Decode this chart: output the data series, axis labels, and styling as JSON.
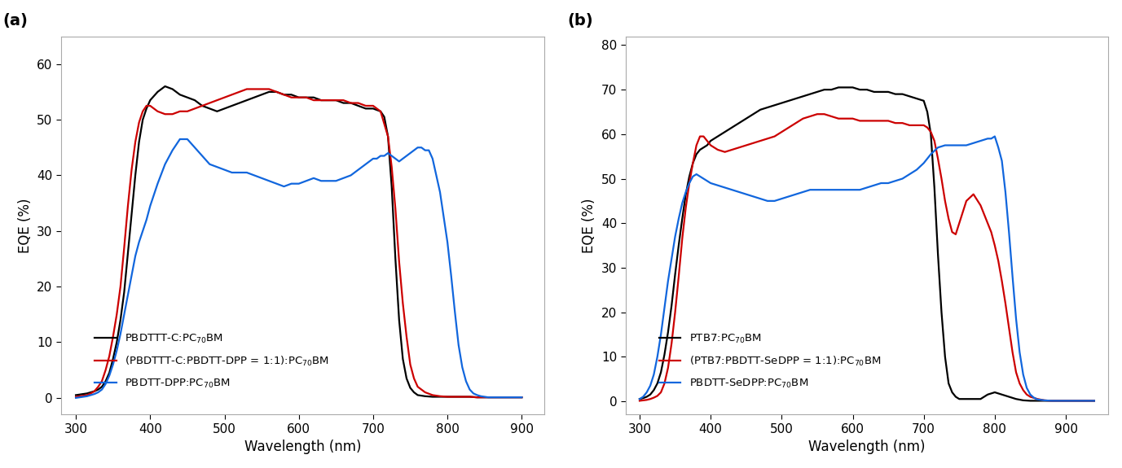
{
  "panel_a": {
    "title": "(a)",
    "xlabel": "Wavelength (nm)",
    "ylabel": "EQE (%)",
    "xlim": [
      280,
      930
    ],
    "ylim": [
      -3,
      65
    ],
    "yticks": [
      0,
      10,
      20,
      30,
      40,
      50,
      60
    ],
    "xticks": [
      300,
      400,
      500,
      600,
      700,
      800,
      900
    ],
    "legend": [
      "PBDTTT-C:PC$_{70}$BM",
      "(PBDTTT-C:PBDTT-DPP = 1:1):PC$_{70}$BM",
      "PBDTT-DPP:PC$_{70}$BM"
    ],
    "colors": [
      "black",
      "#cc0000",
      "#1166dd"
    ],
    "black_x": [
      300,
      310,
      315,
      320,
      325,
      330,
      335,
      340,
      345,
      350,
      355,
      360,
      365,
      370,
      375,
      380,
      385,
      390,
      395,
      400,
      410,
      420,
      430,
      440,
      450,
      460,
      470,
      480,
      490,
      500,
      510,
      520,
      530,
      540,
      550,
      560,
      570,
      580,
      590,
      600,
      610,
      620,
      630,
      640,
      650,
      660,
      670,
      680,
      690,
      700,
      710,
      715,
      720,
      725,
      730,
      735,
      740,
      745,
      750,
      755,
      760,
      770,
      780,
      790,
      800,
      810,
      820,
      830,
      840,
      850,
      860,
      870,
      880,
      890,
      900
    ],
    "black_y": [
      0.5,
      0.7,
      0.8,
      1.0,
      1.2,
      1.5,
      2.0,
      3.0,
      4.5,
      7.0,
      10.0,
      14.0,
      19.0,
      26.0,
      33.0,
      40.0,
      46.0,
      50.0,
      52.0,
      53.5,
      55.0,
      56.0,
      55.5,
      54.5,
      54.0,
      53.5,
      52.5,
      52.0,
      51.5,
      52.0,
      52.5,
      53.0,
      53.5,
      54.0,
      54.5,
      55.0,
      55.0,
      54.5,
      54.5,
      54.0,
      54.0,
      54.0,
      53.5,
      53.5,
      53.5,
      53.0,
      53.0,
      52.5,
      52.0,
      52.0,
      51.5,
      50.5,
      47.0,
      38.0,
      25.0,
      14.0,
      7.0,
      3.5,
      1.8,
      1.0,
      0.5,
      0.3,
      0.2,
      0.2,
      0.2,
      0.2,
      0.2,
      0.2,
      0.1,
      0.1,
      0.1,
      0.1,
      0.1,
      0.1,
      0.1
    ],
    "red_x": [
      300,
      310,
      315,
      320,
      325,
      330,
      335,
      340,
      345,
      350,
      355,
      360,
      365,
      370,
      375,
      380,
      385,
      390,
      395,
      400,
      410,
      420,
      430,
      440,
      450,
      460,
      470,
      480,
      490,
      500,
      510,
      520,
      530,
      540,
      550,
      560,
      570,
      580,
      590,
      600,
      610,
      620,
      630,
      640,
      650,
      660,
      670,
      680,
      690,
      700,
      710,
      720,
      725,
      730,
      735,
      740,
      745,
      750,
      755,
      760,
      770,
      780,
      790,
      800,
      810,
      820,
      830,
      840,
      850,
      860,
      870,
      880,
      890,
      900
    ],
    "red_y": [
      0.2,
      0.4,
      0.5,
      0.8,
      1.2,
      2.0,
      3.0,
      5.0,
      7.5,
      11.0,
      15.0,
      20.0,
      27.0,
      34.5,
      41.0,
      46.0,
      49.5,
      51.5,
      52.5,
      52.5,
      51.5,
      51.0,
      51.0,
      51.5,
      51.5,
      52.0,
      52.5,
      53.0,
      53.5,
      54.0,
      54.5,
      55.0,
      55.5,
      55.5,
      55.5,
      55.5,
      55.0,
      54.5,
      54.0,
      54.0,
      54.0,
      53.5,
      53.5,
      53.5,
      53.5,
      53.5,
      53.0,
      53.0,
      52.5,
      52.5,
      51.5,
      47.0,
      41.5,
      34.0,
      24.5,
      17.0,
      11.0,
      6.0,
      3.5,
      2.0,
      1.0,
      0.5,
      0.3,
      0.2,
      0.2,
      0.2,
      0.2,
      0.1,
      0.1,
      0.1,
      0.1,
      0.1,
      0.1,
      0.1
    ],
    "blue_x": [
      300,
      305,
      310,
      315,
      320,
      325,
      330,
      335,
      340,
      345,
      350,
      355,
      360,
      365,
      370,
      375,
      380,
      385,
      390,
      395,
      400,
      410,
      420,
      430,
      440,
      450,
      460,
      470,
      480,
      490,
      500,
      510,
      520,
      530,
      540,
      550,
      560,
      570,
      580,
      590,
      600,
      610,
      620,
      630,
      640,
      650,
      660,
      670,
      680,
      690,
      700,
      705,
      710,
      715,
      720,
      725,
      730,
      735,
      740,
      745,
      750,
      755,
      760,
      765,
      770,
      775,
      780,
      790,
      800,
      805,
      810,
      815,
      820,
      825,
      830,
      835,
      840,
      845,
      850,
      855,
      860,
      870,
      880,
      890,
      900
    ],
    "blue_y": [
      0.0,
      0.1,
      0.2,
      0.3,
      0.5,
      0.7,
      1.0,
      1.5,
      2.5,
      4.0,
      6.0,
      8.5,
      11.5,
      15.0,
      18.5,
      22.0,
      25.5,
      28.0,
      30.0,
      32.0,
      34.5,
      38.5,
      42.0,
      44.5,
      46.5,
      46.5,
      45.0,
      43.5,
      42.0,
      41.5,
      41.0,
      40.5,
      40.5,
      40.5,
      40.0,
      39.5,
      39.0,
      38.5,
      38.0,
      38.5,
      38.5,
      39.0,
      39.5,
      39.0,
      39.0,
      39.0,
      39.5,
      40.0,
      41.0,
      42.0,
      43.0,
      43.0,
      43.5,
      43.5,
      44.0,
      43.5,
      43.0,
      42.5,
      43.0,
      43.5,
      44.0,
      44.5,
      45.0,
      45.0,
      44.5,
      44.5,
      43.0,
      37.0,
      28.0,
      22.0,
      15.5,
      9.5,
      5.5,
      3.0,
      1.5,
      0.8,
      0.5,
      0.3,
      0.2,
      0.1,
      0.1,
      0.1,
      0.1,
      0.1,
      0.1
    ]
  },
  "panel_b": {
    "title": "(b)",
    "xlabel": "Wavelength (nm)",
    "ylabel": "EQE (%)",
    "xlim": [
      280,
      960
    ],
    "ylim": [
      -3,
      82
    ],
    "yticks": [
      0,
      10,
      20,
      30,
      40,
      50,
      60,
      70,
      80
    ],
    "xticks": [
      300,
      400,
      500,
      600,
      700,
      800,
      900
    ],
    "legend": [
      "PTB7:PC$_{70}$BM",
      "(PTB7:PBDTT-SeDPP = 1:1):PC$_{70}$BM",
      "PBDTT-SeDPP:PC$_{70}$BM"
    ],
    "colors": [
      "black",
      "#cc0000",
      "#1166dd"
    ],
    "black_x": [
      300,
      305,
      310,
      315,
      320,
      325,
      330,
      335,
      340,
      345,
      350,
      355,
      360,
      365,
      370,
      375,
      380,
      385,
      390,
      395,
      400,
      410,
      420,
      430,
      440,
      450,
      460,
      470,
      480,
      490,
      500,
      510,
      520,
      530,
      540,
      550,
      560,
      570,
      580,
      590,
      600,
      610,
      620,
      630,
      640,
      650,
      660,
      670,
      680,
      690,
      700,
      705,
      710,
      715,
      720,
      725,
      730,
      735,
      740,
      745,
      750,
      755,
      760,
      770,
      780,
      790,
      800,
      810,
      820,
      830,
      840,
      850,
      860,
      870,
      880,
      890,
      900,
      910,
      920,
      930,
      940
    ],
    "black_y": [
      0.5,
      0.7,
      1.0,
      1.5,
      2.5,
      4.0,
      6.5,
      10.5,
      15.5,
      21.5,
      28.5,
      35.0,
      41.0,
      46.5,
      50.5,
      53.5,
      55.5,
      56.5,
      57.0,
      57.5,
      58.5,
      59.5,
      60.5,
      61.5,
      62.5,
      63.5,
      64.5,
      65.5,
      66.0,
      66.5,
      67.0,
      67.5,
      68.0,
      68.5,
      69.0,
      69.5,
      70.0,
      70.0,
      70.5,
      70.5,
      70.5,
      70.0,
      70.0,
      69.5,
      69.5,
      69.5,
      69.0,
      69.0,
      68.5,
      68.0,
      67.5,
      65.0,
      60.0,
      48.0,
      33.0,
      20.0,
      10.0,
      4.0,
      2.0,
      1.0,
      0.5,
      0.5,
      0.5,
      0.5,
      0.5,
      1.5,
      2.0,
      1.5,
      1.0,
      0.5,
      0.2,
      0.1,
      0.1,
      0.1,
      0.1,
      0.1,
      0.1,
      0.1,
      0.1,
      0.1,
      0.1
    ],
    "red_x": [
      300,
      305,
      310,
      315,
      320,
      325,
      330,
      335,
      340,
      345,
      350,
      355,
      360,
      365,
      370,
      375,
      380,
      385,
      390,
      395,
      400,
      410,
      420,
      430,
      440,
      450,
      460,
      470,
      480,
      490,
      500,
      510,
      520,
      530,
      540,
      550,
      560,
      570,
      580,
      590,
      600,
      610,
      620,
      630,
      640,
      650,
      660,
      670,
      680,
      690,
      700,
      705,
      710,
      715,
      720,
      725,
      730,
      735,
      740,
      745,
      750,
      760,
      770,
      780,
      790,
      795,
      800,
      805,
      810,
      815,
      820,
      825,
      830,
      835,
      840,
      845,
      850,
      860,
      870,
      880,
      890,
      900,
      910,
      920,
      930,
      940
    ],
    "red_y": [
      0.1,
      0.2,
      0.3,
      0.5,
      0.8,
      1.2,
      2.0,
      4.0,
      7.5,
      13.0,
      20.0,
      28.0,
      36.5,
      43.5,
      49.0,
      53.5,
      57.5,
      59.5,
      59.5,
      58.5,
      57.5,
      56.5,
      56.0,
      56.5,
      57.0,
      57.5,
      58.0,
      58.5,
      59.0,
      59.5,
      60.5,
      61.5,
      62.5,
      63.5,
      64.0,
      64.5,
      64.5,
      64.0,
      63.5,
      63.5,
      63.5,
      63.0,
      63.0,
      63.0,
      63.0,
      63.0,
      62.5,
      62.5,
      62.0,
      62.0,
      62.0,
      61.5,
      60.5,
      58.5,
      54.5,
      50.0,
      45.0,
      41.0,
      38.0,
      37.5,
      40.0,
      45.0,
      46.5,
      44.0,
      40.0,
      38.0,
      35.0,
      31.5,
      27.0,
      22.0,
      16.5,
      11.0,
      6.5,
      4.0,
      2.5,
      1.5,
      1.0,
      0.5,
      0.2,
      0.1,
      0.1,
      0.1,
      0.1,
      0.1,
      0.1,
      0.1
    ],
    "blue_x": [
      300,
      305,
      310,
      315,
      320,
      325,
      330,
      335,
      340,
      345,
      350,
      355,
      360,
      365,
      370,
      375,
      380,
      385,
      390,
      400,
      410,
      420,
      430,
      440,
      450,
      460,
      470,
      480,
      490,
      500,
      510,
      520,
      530,
      540,
      550,
      560,
      570,
      580,
      590,
      600,
      610,
      620,
      630,
      640,
      650,
      660,
      670,
      680,
      690,
      700,
      710,
      720,
      730,
      740,
      750,
      760,
      770,
      780,
      790,
      795,
      800,
      805,
      810,
      815,
      820,
      825,
      830,
      835,
      840,
      845,
      850,
      855,
      860,
      870,
      880,
      890,
      900,
      910,
      920,
      930,
      940
    ],
    "blue_y": [
      0.5,
      1.0,
      2.0,
      3.5,
      6.0,
      10.0,
      15.0,
      21.0,
      27.0,
      32.0,
      37.0,
      41.0,
      44.5,
      47.0,
      49.0,
      50.5,
      51.0,
      50.5,
      50.0,
      49.0,
      48.5,
      48.0,
      47.5,
      47.0,
      46.5,
      46.0,
      45.5,
      45.0,
      45.0,
      45.5,
      46.0,
      46.5,
      47.0,
      47.5,
      47.5,
      47.5,
      47.5,
      47.5,
      47.5,
      47.5,
      47.5,
      48.0,
      48.5,
      49.0,
      49.0,
      49.5,
      50.0,
      51.0,
      52.0,
      53.5,
      55.5,
      57.0,
      57.5,
      57.5,
      57.5,
      57.5,
      58.0,
      58.5,
      59.0,
      59.0,
      59.5,
      57.0,
      54.0,
      47.0,
      38.0,
      28.0,
      18.5,
      11.0,
      6.0,
      3.0,
      1.5,
      0.8,
      0.4,
      0.2,
      0.1,
      0.1,
      0.1,
      0.1,
      0.1,
      0.1,
      0.1
    ]
  }
}
